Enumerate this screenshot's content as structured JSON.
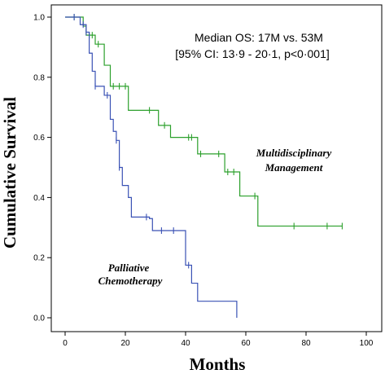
{
  "chart_data": {
    "type": "line",
    "subtype": "kaplan-meier-step",
    "xlabel": "Months",
    "ylabel": "Cumulative Survival",
    "xlim": [
      0,
      100
    ],
    "ylim": [
      0,
      1
    ],
    "xticks": [
      0,
      20,
      40,
      60,
      80,
      100
    ],
    "yticks": [
      0.0,
      0.2,
      0.4,
      0.6,
      0.8,
      1.0
    ],
    "xtick_labels": [
      "0",
      "20",
      "40",
      "60",
      "80",
      "100"
    ],
    "ytick_labels": [
      "0.0",
      "0.2",
      "0.4",
      "0.6",
      "0.8",
      "1.0"
    ],
    "grid": false,
    "legend": "none",
    "annotations": [
      "Median OS: 17M vs. 53M",
      "[95% CI: 13·9 - 20·1, p<0·001]"
    ],
    "series": [
      {
        "name": "Multidisciplinary Management",
        "label_lines": [
          "Multidisciplinary",
          "Management"
        ],
        "color": "#2ca02c",
        "steps": [
          [
            0,
            1.0
          ],
          [
            6,
            0.97
          ],
          [
            7,
            0.94
          ],
          [
            10,
            0.91
          ],
          [
            13,
            0.84
          ],
          [
            15,
            0.77
          ],
          [
            21,
            0.69
          ],
          [
            31,
            0.64
          ],
          [
            35,
            0.6
          ],
          [
            44,
            0.545
          ],
          [
            53,
            0.485
          ],
          [
            58,
            0.405
          ],
          [
            64,
            0.305
          ],
          [
            92,
            0.305
          ]
        ],
        "censored": [
          [
            3,
            1.0
          ],
          [
            8,
            0.94
          ],
          [
            9,
            0.94
          ],
          [
            11,
            0.91
          ],
          [
            16,
            0.77
          ],
          [
            18,
            0.77
          ],
          [
            20,
            0.77
          ],
          [
            28,
            0.69
          ],
          [
            33,
            0.645
          ],
          [
            41,
            0.6
          ],
          [
            42,
            0.6
          ],
          [
            45,
            0.6
          ],
          [
            51,
            0.545
          ],
          [
            54,
            0.485
          ],
          [
            56,
            0.485
          ],
          [
            63,
            0.405
          ],
          [
            76,
            0.305
          ],
          [
            87,
            0.305
          ],
          [
            92,
            0.305
          ]
        ]
      },
      {
        "name": "Palliative Chemotherapy",
        "label_lines": [
          "Palliative",
          "Chemotherapy"
        ],
        "color": "#3a52b5",
        "steps": [
          [
            0,
            1.0
          ],
          [
            5,
            0.975
          ],
          [
            7,
            0.95
          ],
          [
            8,
            0.88
          ],
          [
            9,
            0.82
          ],
          [
            10,
            0.77
          ],
          [
            13,
            0.74
          ],
          [
            15,
            0.66
          ],
          [
            16,
            0.62
          ],
          [
            17,
            0.59
          ],
          [
            18,
            0.5
          ],
          [
            19,
            0.44
          ],
          [
            21,
            0.4
          ],
          [
            22,
            0.335
          ],
          [
            28,
            0.33
          ],
          [
            29,
            0.29
          ],
          [
            40,
            0.175
          ],
          [
            42,
            0.115
          ],
          [
            44,
            0.055
          ],
          [
            57,
            0.0
          ]
        ],
        "censored": [
          [
            3,
            1.0
          ],
          [
            6,
            0.975
          ],
          [
            7,
            0.975
          ],
          [
            10,
            0.77
          ],
          [
            14,
            0.74
          ],
          [
            17,
            0.59
          ],
          [
            18,
            0.5
          ],
          [
            27,
            0.335
          ],
          [
            32,
            0.29
          ],
          [
            36,
            0.29
          ],
          [
            41,
            0.175
          ]
        ]
      }
    ]
  }
}
